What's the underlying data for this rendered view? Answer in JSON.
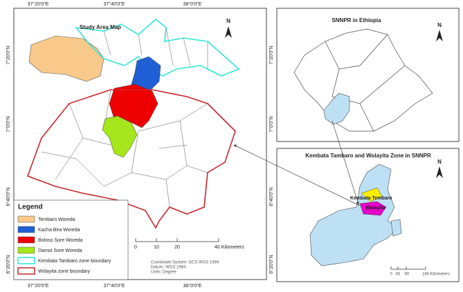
{
  "main_map": {
    "title": "Study Area Map",
    "top_labels": [
      "37°20'0\"E",
      "37°40'0\"E",
      "38°0'0\"E"
    ],
    "bottom_labels": [
      "37°20'0\"E",
      "37°40'0\"E",
      "38°0'0\"E"
    ],
    "left_labels": [
      "7°20'0\"N",
      "7°0'0\"N",
      "6°40'0\"N",
      "6°20'0\"N"
    ],
    "right_labels": [
      "7°20'0\"N",
      "7°0'0\"N",
      "6°40'0\"N",
      "6°20'0\"N"
    ],
    "north": "N",
    "legend": {
      "title": "Legend",
      "items": [
        "Tembaro Woreda",
        "Kacha Bira Woreda",
        "Boloso Sore Woreda",
        "Damot Sore Woreda",
        "Kembata Tambaro zone boundary",
        "Wolayita zone boundary"
      ]
    },
    "scale": [
      "0",
      "10",
      "20",
      "40 Kilometers"
    ],
    "coordinate_info": [
      "Coordinate System: GCS WGS 1984",
      "Datum: WGS 1984",
      "Units: Degree"
    ]
  },
  "inset_ethiopia": {
    "title": "SNNPR in Ethiopia",
    "north": "N"
  },
  "inset_zones": {
    "title": "Kembata Tambaro and Wolayita Zone in SNNPR",
    "labels": [
      "Kembata Tembaro",
      "Wolayita"
    ],
    "north": "N",
    "scale": [
      "0",
      "45",
      "90",
      "180 Kilometers"
    ]
  }
}
